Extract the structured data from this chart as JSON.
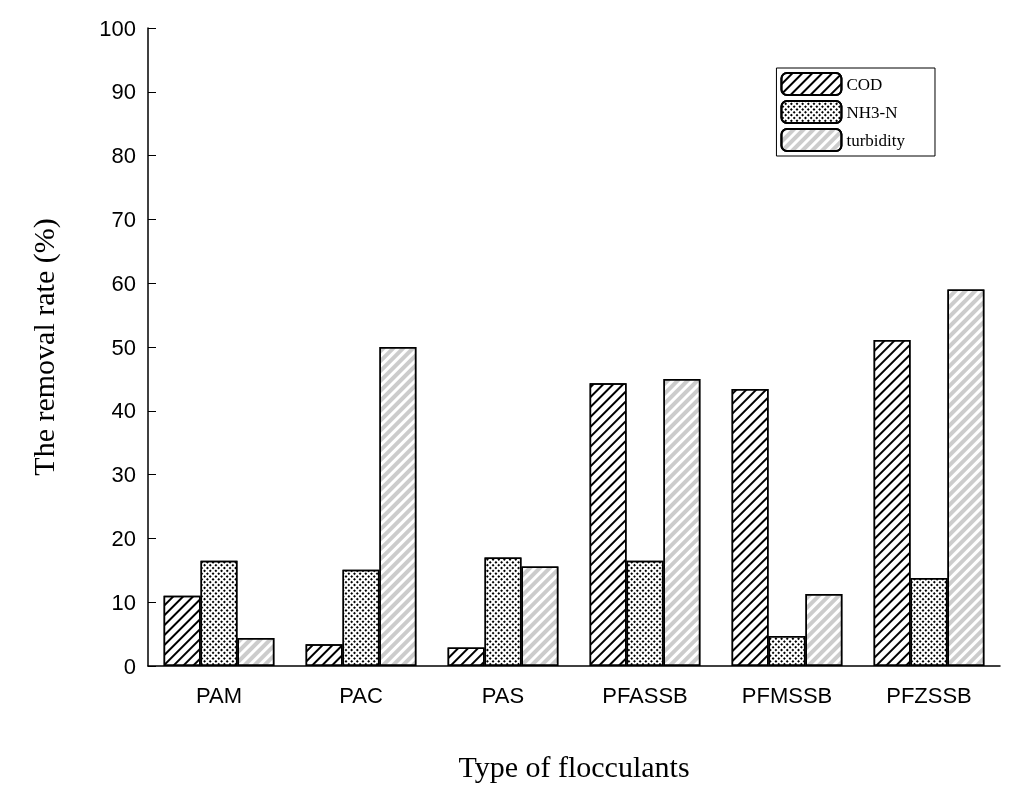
{
  "chart_data": {
    "type": "bar",
    "xlabel": "Type of flocculants",
    "ylabel": "The removal rate (%)",
    "categories": [
      "PAM",
      "PAC",
      "PAS",
      "PFASSB",
      "PFMSSB",
      "PFZSSB"
    ],
    "series": [
      {
        "name": "COD",
        "color": "#ffffff",
        "values": [
          11.0,
          3.4,
          2.9,
          44.3,
          43.4,
          51.1
        ]
      },
      {
        "name": "NH3-N",
        "color": "#ffffff",
        "values": [
          16.5,
          15.1,
          17.0,
          16.5,
          4.7,
          13.8
        ]
      },
      {
        "name": "turbidity",
        "color": "#ffffff",
        "values": [
          4.4,
          50.0,
          15.6,
          45.0,
          11.3,
          59.0
        ]
      }
    ],
    "ylim": [
      0,
      100
    ],
    "yticks": [
      0,
      10,
      20,
      30,
      40,
      50,
      60,
      70,
      80,
      90,
      100
    ],
    "grid": false,
    "legend": "top right"
  }
}
